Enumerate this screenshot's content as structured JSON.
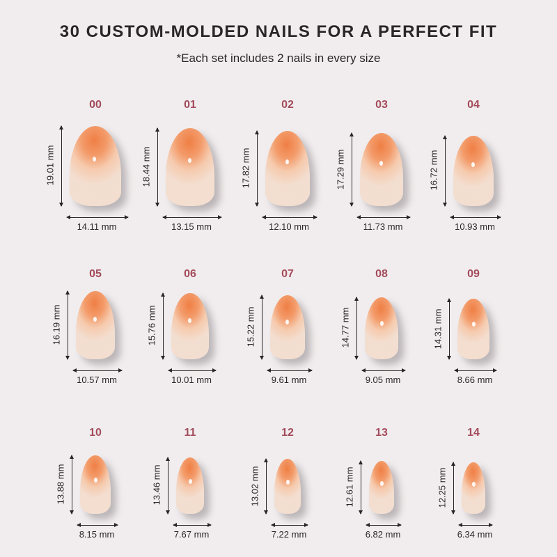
{
  "header": {
    "title": "30 CUSTOM-MOLDED NAILS FOR A PERFECT FIT",
    "subtitle": "*Each set includes 2 nails in every size"
  },
  "colors": {
    "background": "#f1edee",
    "size_label": "#a34b5b",
    "nail_tip": "#ef7f45",
    "nail_base": "#f1dccf"
  },
  "nails": [
    {
      "size": "00",
      "length": "19.01 mm",
      "width": "14.11 mm"
    },
    {
      "size": "01",
      "length": "18.44 mm",
      "width": "13.15 mm"
    },
    {
      "size": "02",
      "length": "17.82 mm",
      "width": "12.10 mm"
    },
    {
      "size": "03",
      "length": "17.29 mm",
      "width": "11.73 mm"
    },
    {
      "size": "04",
      "length": "16.72 mm",
      "width": "10.93 mm"
    },
    {
      "size": "05",
      "length": "16.19 mm",
      "width": "10.57 mm"
    },
    {
      "size": "06",
      "length": "15.76 mm",
      "width": "10.01 mm"
    },
    {
      "size": "07",
      "length": "15.22 mm",
      "width": "9.61 mm"
    },
    {
      "size": "08",
      "length": "14.77 mm",
      "width": "9.05 mm"
    },
    {
      "size": "09",
      "length": "14.31 mm",
      "width": "8.66 mm"
    },
    {
      "size": "10",
      "length": "13.88 mm",
      "width": "8.15 mm"
    },
    {
      "size": "11",
      "length": "13.46 mm",
      "width": "7.67 mm"
    },
    {
      "size": "12",
      "length": "13.02 mm",
      "width": "7.22 mm"
    },
    {
      "size": "13",
      "length": "12.61 mm",
      "width": "6.82 mm"
    },
    {
      "size": "14",
      "length": "12.25 mm",
      "width": "6.34 mm"
    }
  ]
}
